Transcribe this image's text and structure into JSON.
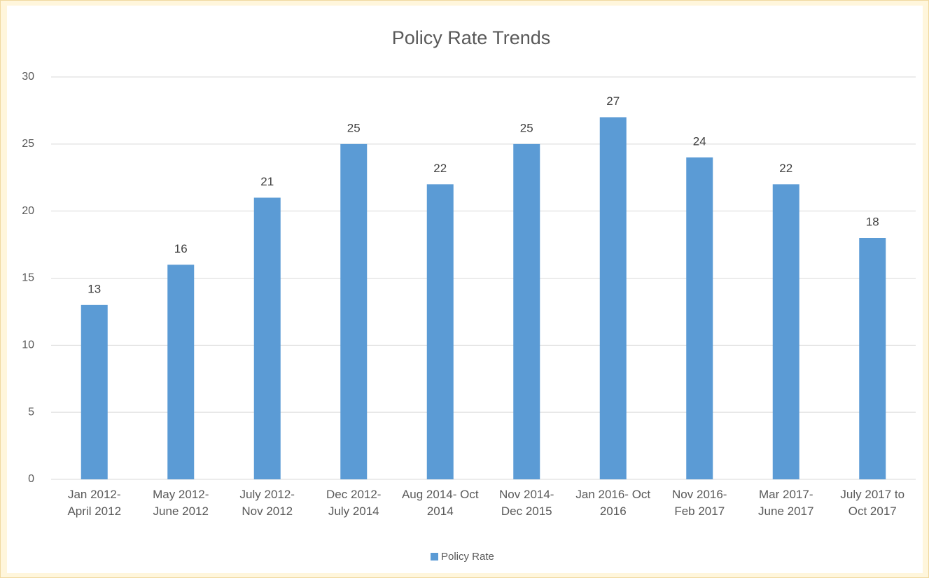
{
  "chart_data": {
    "type": "bar",
    "title": "Policy Rate Trends",
    "categories": [
      "Jan 2012- April 2012",
      "May 2012- June 2012",
      "July 2012- Nov 2012",
      "Dec 2012- July 2014",
      "Aug 2014- Oct 2014",
      "Nov 2014- Dec 2015",
      "Jan 2016- Oct 2016",
      "Nov 2016- Feb 2017",
      "Mar 2017- June 2017",
      "July 2017 to Oct 2017"
    ],
    "series": [
      {
        "name": "Policy Rate",
        "color": "#5b9bd5",
        "values": [
          13,
          16,
          21,
          25,
          22,
          25,
          27,
          24,
          22,
          18
        ]
      }
    ],
    "ylim": [
      0,
      30
    ],
    "yticks": [
      0,
      5,
      10,
      15,
      20,
      25,
      30
    ],
    "grid": true,
    "legend": "bottom"
  }
}
